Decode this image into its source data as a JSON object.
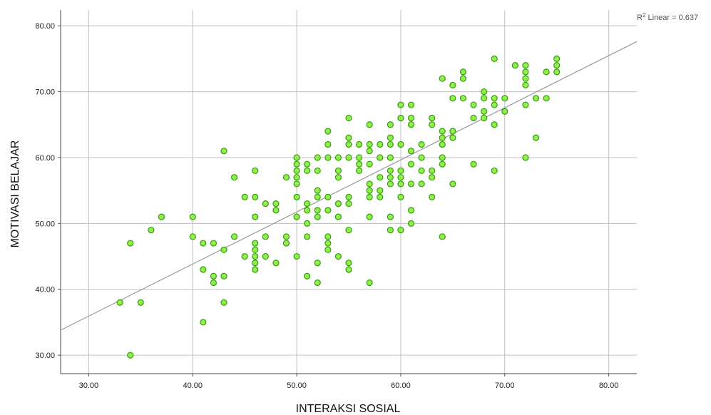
{
  "chart_data": {
    "type": "scatter",
    "xlabel": "INTERAKSI SOSIAL",
    "ylabel": "MOTIVASI BELAJAR",
    "xlim": [
      27.3,
      82.7
    ],
    "ylim": [
      27.2,
      82.4
    ],
    "x_ticks": [
      "30.00",
      "40.00",
      "50.00",
      "60.00",
      "70.00",
      "80.00"
    ],
    "y_ticks": [
      "30.00",
      "40.00",
      "50.00",
      "60.00",
      "70.00",
      "80.00"
    ],
    "grid": true,
    "fit_line": {
      "label": "R² Linear = 0.637",
      "r2_prefix": "R",
      "r2_sup": "2",
      "r2_suffix": " Linear = 0.637",
      "x": [
        27.3,
        82.7
      ],
      "y": [
        33.8,
        77.6
      ]
    },
    "colors": {
      "point_fill": "#8ef04a",
      "point_stroke": "#3a9a12",
      "fit_line": "#9a9a9a",
      "grid": "#c0c0c0"
    },
    "points": [
      [
        34,
        30
      ],
      [
        33,
        38
      ],
      [
        35,
        38
      ],
      [
        34,
        47
      ],
      [
        36,
        49
      ],
      [
        37,
        51
      ],
      [
        40,
        51
      ],
      [
        40,
        48
      ],
      [
        41,
        47
      ],
      [
        41,
        43
      ],
      [
        41,
        35
      ],
      [
        42,
        47
      ],
      [
        42,
        42
      ],
      [
        42,
        41
      ],
      [
        43,
        46
      ],
      [
        43,
        42
      ],
      [
        43,
        38
      ],
      [
        43,
        61
      ],
      [
        44,
        57
      ],
      [
        44,
        48
      ],
      [
        45,
        54
      ],
      [
        45,
        45
      ],
      [
        46,
        58
      ],
      [
        46,
        54
      ],
      [
        46,
        51
      ],
      [
        46,
        47
      ],
      [
        46,
        46
      ],
      [
        46,
        45
      ],
      [
        46,
        44
      ],
      [
        46,
        43
      ],
      [
        47,
        53
      ],
      [
        47,
        48
      ],
      [
        47,
        45
      ],
      [
        48,
        53
      ],
      [
        48,
        52
      ],
      [
        48,
        44
      ],
      [
        49,
        57
      ],
      [
        49,
        48
      ],
      [
        49,
        47
      ],
      [
        50,
        60
      ],
      [
        50,
        59
      ],
      [
        50,
        58
      ],
      [
        50,
        57
      ],
      [
        50,
        56
      ],
      [
        50,
        54
      ],
      [
        50,
        51
      ],
      [
        50,
        45
      ],
      [
        51,
        59
      ],
      [
        51,
        58
      ],
      [
        51,
        53
      ],
      [
        51,
        52
      ],
      [
        51,
        50
      ],
      [
        51,
        48
      ],
      [
        51,
        42
      ],
      [
        52,
        60
      ],
      [
        52,
        58
      ],
      [
        52,
        55
      ],
      [
        52,
        54
      ],
      [
        52,
        52
      ],
      [
        52,
        51
      ],
      [
        52,
        44
      ],
      [
        52,
        41
      ],
      [
        53,
        64
      ],
      [
        53,
        62
      ],
      [
        53,
        60
      ],
      [
        53,
        54
      ],
      [
        53,
        52
      ],
      [
        53,
        48
      ],
      [
        53,
        47
      ],
      [
        53,
        46
      ],
      [
        54,
        60
      ],
      [
        54,
        58
      ],
      [
        54,
        57
      ],
      [
        54,
        53
      ],
      [
        54,
        51
      ],
      [
        54,
        45
      ],
      [
        55,
        66
      ],
      [
        55,
        63
      ],
      [
        55,
        62
      ],
      [
        55,
        60
      ],
      [
        55,
        54
      ],
      [
        55,
        53
      ],
      [
        55,
        49
      ],
      [
        55,
        44
      ],
      [
        55,
        43
      ],
      [
        56,
        62
      ],
      [
        56,
        60
      ],
      [
        56,
        59
      ],
      [
        56,
        58
      ],
      [
        57,
        65
      ],
      [
        57,
        62
      ],
      [
        57,
        61
      ],
      [
        57,
        59
      ],
      [
        57,
        56
      ],
      [
        57,
        55
      ],
      [
        57,
        54
      ],
      [
        57,
        51
      ],
      [
        57,
        41
      ],
      [
        58,
        62
      ],
      [
        58,
        60
      ],
      [
        58,
        57
      ],
      [
        58,
        55
      ],
      [
        58,
        54
      ],
      [
        59,
        65
      ],
      [
        59,
        63
      ],
      [
        59,
        62
      ],
      [
        59,
        60
      ],
      [
        59,
        58
      ],
      [
        59,
        57
      ],
      [
        59,
        56
      ],
      [
        59,
        51
      ],
      [
        59,
        49
      ],
      [
        60,
        68
      ],
      [
        60,
        66
      ],
      [
        60,
        62
      ],
      [
        60,
        58
      ],
      [
        60,
        57
      ],
      [
        60,
        56
      ],
      [
        60,
        54
      ],
      [
        60,
        49
      ],
      [
        61,
        68
      ],
      [
        61,
        66
      ],
      [
        61,
        65
      ],
      [
        61,
        61
      ],
      [
        61,
        59
      ],
      [
        61,
        56
      ],
      [
        61,
        52
      ],
      [
        61,
        50
      ],
      [
        62,
        62
      ],
      [
        62,
        60
      ],
      [
        62,
        58
      ],
      [
        62,
        56
      ],
      [
        63,
        66
      ],
      [
        63,
        65
      ],
      [
        63,
        58
      ],
      [
        63,
        57
      ],
      [
        63,
        54
      ],
      [
        64,
        72
      ],
      [
        64,
        64
      ],
      [
        64,
        63
      ],
      [
        64,
        62
      ],
      [
        64,
        60
      ],
      [
        64,
        59
      ],
      [
        64,
        48
      ],
      [
        65,
        71
      ],
      [
        65,
        69
      ],
      [
        65,
        64
      ],
      [
        65,
        63
      ],
      [
        65,
        56
      ],
      [
        66,
        73
      ],
      [
        66,
        72
      ],
      [
        66,
        69
      ],
      [
        67,
        68
      ],
      [
        67,
        66
      ],
      [
        67,
        59
      ],
      [
        68,
        70
      ],
      [
        68,
        69
      ],
      [
        68,
        67
      ],
      [
        68,
        66
      ],
      [
        69,
        75
      ],
      [
        69,
        69
      ],
      [
        69,
        68
      ],
      [
        69,
        65
      ],
      [
        69,
        58
      ],
      [
        70,
        69
      ],
      [
        70,
        67
      ],
      [
        71,
        74
      ],
      [
        72,
        74
      ],
      [
        72,
        73
      ],
      [
        72,
        72
      ],
      [
        72,
        71
      ],
      [
        72,
        68
      ],
      [
        72,
        60
      ],
      [
        73,
        69
      ],
      [
        73,
        63
      ],
      [
        74,
        73
      ],
      [
        74,
        69
      ],
      [
        75,
        75
      ],
      [
        75,
        74
      ],
      [
        75,
        73
      ]
    ]
  }
}
